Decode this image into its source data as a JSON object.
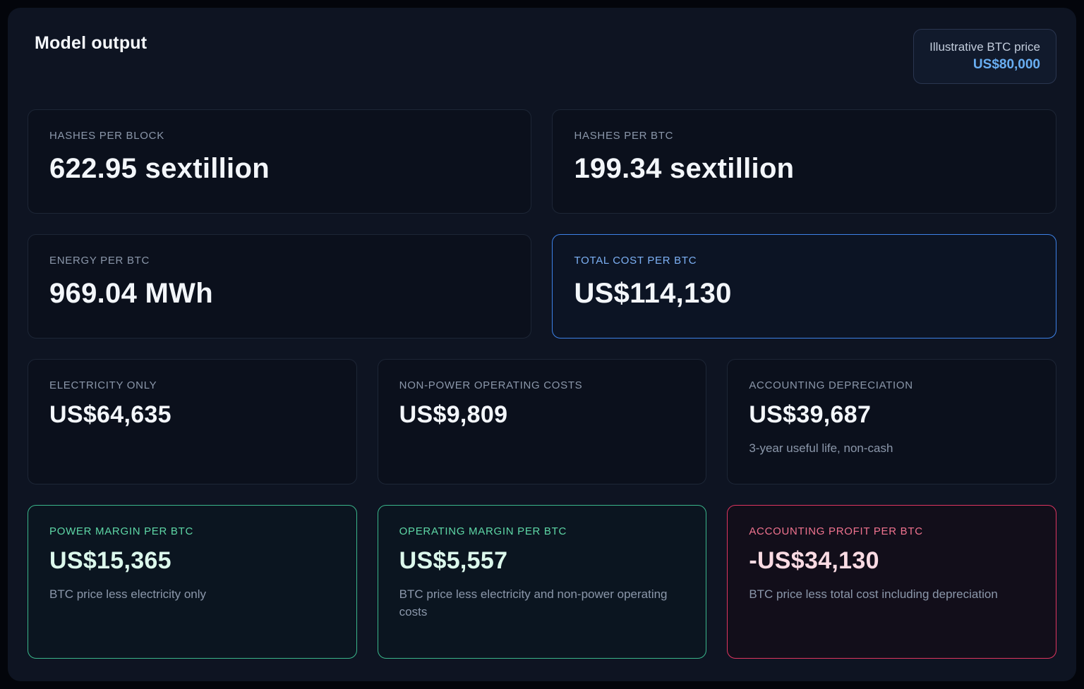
{
  "header": {
    "title": "Model output",
    "badge_label": "Illustrative BTC price",
    "badge_value": "US$80,000"
  },
  "cards": {
    "hashes_per_block": {
      "label": "HASHES PER BLOCK",
      "value": "622.95 sextillion"
    },
    "hashes_per_btc": {
      "label": "HASHES PER BTC",
      "value": "199.34 sextillion"
    },
    "energy_per_btc": {
      "label": "ENERGY PER BTC",
      "value": "969.04 MWh"
    },
    "total_cost_per_btc": {
      "label": "TOTAL COST PER BTC",
      "value": "US$114,130"
    },
    "electricity_only": {
      "label": "ELECTRICITY ONLY",
      "value": "US$64,635"
    },
    "non_power_operating_costs": {
      "label": "NON-POWER OPERATING COSTS",
      "value": "US$9,809"
    },
    "accounting_depreciation": {
      "label": "ACCOUNTING DEPRECIATION",
      "value": "US$39,687",
      "note": "3-year useful life, non-cash"
    },
    "power_margin_per_btc": {
      "label": "POWER MARGIN PER BTC",
      "value": "US$15,365",
      "note": "BTC price less electricity only"
    },
    "operating_margin_per_btc": {
      "label": "OPERATING MARGIN PER BTC",
      "value": "US$5,557",
      "note": "BTC price less electricity and non-power operating costs"
    },
    "accounting_profit_per_btc": {
      "label": "ACCOUNTING PROFIT PER BTC",
      "value": "-US$34,130",
      "note": "BTC price less total cost including depreciation"
    }
  },
  "colors": {
    "accent_blue": "#3d82e8",
    "accent_green": "#3ab68b",
    "accent_red": "#de3560",
    "badge_value_blue": "#69aef2"
  }
}
